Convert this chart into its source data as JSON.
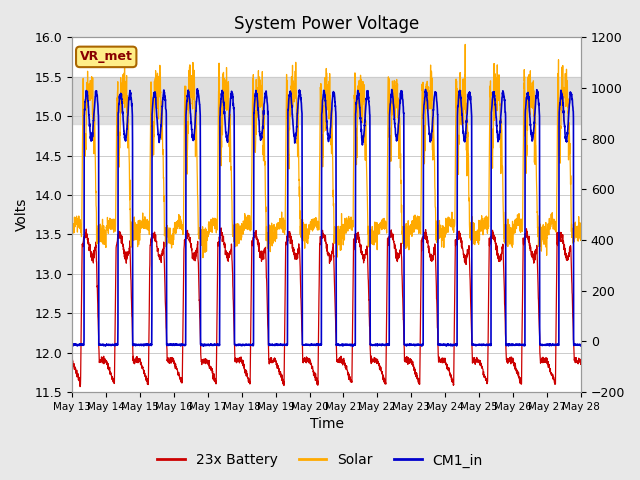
{
  "title": "System Power Voltage",
  "xlabel": "Time",
  "ylabel_left": "Volts",
  "ylim_left": [
    11.5,
    16.0
  ],
  "ylim_right": [
    -200,
    1200
  ],
  "xtick_labels": [
    "May 13",
    "May 14",
    "May 15",
    "May 16",
    "May 17",
    "May 18",
    "May 19",
    "May 20",
    "May 21",
    "May 22",
    "May 23",
    "May 24",
    "May 25",
    "May 26",
    "May 27",
    "May 28"
  ],
  "yticks_left": [
    11.5,
    12.0,
    12.5,
    13.0,
    13.5,
    14.0,
    14.5,
    15.0,
    15.5,
    16.0
  ],
  "yticks_right": [
    -200,
    0,
    200,
    400,
    600,
    800,
    1000,
    1200
  ],
  "legend_labels": [
    "23x Battery",
    "Solar",
    "CM1_in"
  ],
  "colors": [
    "#cc0000",
    "#ffaa00",
    "#0000cc"
  ],
  "annotation_text": "VR_met",
  "annotation_facecolor": "#ffee88",
  "annotation_edgecolor": "#aa6600",
  "shaded_band": [
    14.9,
    15.5
  ],
  "bg_color": "#ffffff",
  "fig_bg": "#e8e8e8",
  "grid_color": "#cccccc",
  "title_fontsize": 12,
  "label_fontsize": 10,
  "tick_fontsize": 9,
  "n_days": 15,
  "n_points": 3000
}
